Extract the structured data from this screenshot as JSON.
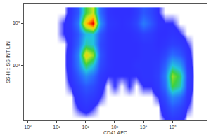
{
  "chart_data": {
    "type": "heatmap",
    "x_label": "CD41 APC",
    "y_label": "SS-H :: SS INT LIN",
    "log": true,
    "grid": false,
    "xlim": [
      0.75,
      1500000
    ],
    "ylim": [
      500,
      280000
    ],
    "xticks": [
      {
        "value": 1,
        "label": "10⁰"
      },
      {
        "value": 10,
        "label": "10¹"
      },
      {
        "value": 100,
        "label": "10²"
      },
      {
        "value": 1000,
        "label": "10³"
      },
      {
        "value": 10000,
        "label": "10⁴"
      },
      {
        "value": 100000,
        "label": "10⁵"
      }
    ],
    "yticks": [
      {
        "value": 10000,
        "label": "10⁴"
      },
      {
        "value": 100000,
        "label": "10⁵"
      }
    ],
    "x": [
      1,
      1.78,
      3.16,
      5.62,
      10,
      17.8,
      31.6,
      56.2,
      100,
      178,
      316,
      562,
      1000,
      1778,
      3162,
      5623,
      10000,
      17783,
      31623,
      56234,
      100000,
      177828,
      316228,
      562341,
      1000000
    ],
    "y": [
      562,
      1000,
      1778,
      3162,
      5623,
      10000,
      17783,
      31623,
      56234,
      100000,
      177828
    ],
    "z": [
      [
        0,
        0,
        0,
        0,
        0,
        0,
        0,
        0,
        0,
        0,
        0,
        0,
        0,
        0,
        0,
        0,
        0,
        0,
        0,
        1,
        3,
        2,
        0,
        0,
        0
      ],
      [
        0,
        0,
        0,
        0,
        0,
        0,
        0,
        1,
        2,
        1,
        0,
        0,
        0,
        0,
        0,
        0,
        0,
        0,
        0,
        3,
        8,
        5,
        1,
        0,
        0
      ],
      [
        0,
        0,
        0,
        0,
        0,
        0,
        0,
        2,
        4,
        3,
        1,
        0,
        0,
        0,
        0,
        0,
        0,
        0,
        1,
        6,
        18,
        12,
        2,
        0,
        0
      ],
      [
        0,
        0,
        0,
        0,
        0,
        0,
        1,
        4,
        8,
        6,
        2,
        0,
        1,
        0,
        1,
        0,
        1,
        1,
        3,
        12,
        45,
        35,
        4,
        0,
        0
      ],
      [
        0,
        0,
        0,
        0,
        0,
        0,
        2,
        8,
        18,
        12,
        3,
        1,
        1,
        1,
        1,
        1,
        2,
        2,
        4,
        15,
        55,
        40,
        5,
        0,
        0
      ],
      [
        0,
        0,
        0,
        0,
        0,
        0,
        3,
        14,
        42,
        30,
        6,
        2,
        1,
        1,
        1,
        2,
        2,
        2,
        3,
        10,
        30,
        22,
        3,
        0,
        0
      ],
      [
        0,
        0,
        0,
        0,
        0,
        0,
        3,
        16,
        70,
        55,
        8,
        2,
        1,
        1,
        1,
        1,
        2,
        2,
        2,
        5,
        12,
        8,
        2,
        0,
        0
      ],
      [
        0,
        0,
        0,
        0,
        0,
        0,
        2,
        10,
        35,
        30,
        6,
        2,
        1,
        1,
        1,
        1,
        2,
        2,
        1,
        2,
        4,
        3,
        1,
        0,
        0
      ],
      [
        0,
        0,
        0,
        0,
        0,
        1,
        2,
        8,
        28,
        30,
        8,
        2,
        1,
        1,
        1,
        2,
        4,
        3,
        1,
        1,
        2,
        1,
        0,
        0,
        0
      ],
      [
        0,
        0,
        0,
        0,
        0,
        1,
        3,
        14,
        75,
        100,
        20,
        3,
        2,
        1,
        2,
        5,
        15,
        8,
        2,
        1,
        1,
        0,
        0,
        0,
        0
      ],
      [
        0,
        0,
        0,
        0,
        0,
        0,
        2,
        8,
        45,
        60,
        12,
        2,
        1,
        1,
        1,
        3,
        8,
        5,
        1,
        0,
        0,
        0,
        0,
        0,
        0
      ]
    ]
  }
}
